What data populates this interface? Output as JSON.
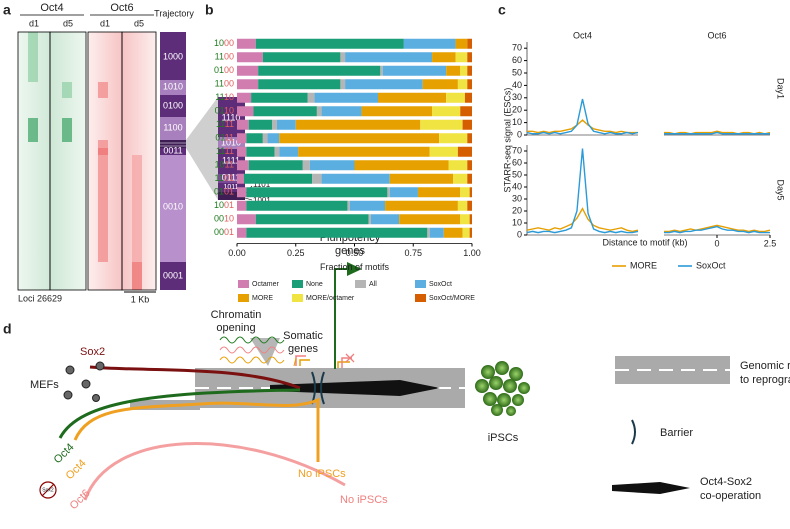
{
  "panel_labels": [
    "a",
    "b",
    "c",
    "d"
  ],
  "panel_a": {
    "groups": [
      "Oct4",
      "Oct6"
    ],
    "days": [
      "d1",
      "d5",
      "d1",
      "d5"
    ],
    "trajectory_title": "Trajectory",
    "trajectories": [
      "1000",
      "1010",
      "0100",
      "1100",
      "0011",
      "0010",
      "0001"
    ],
    "zoom": [
      "1110",
      "1010",
      "1111",
      "0111",
      "1011"
    ],
    "zoom_callouts": [
      "1101",
      "0101",
      "1001"
    ],
    "loci": "Loci 26629",
    "scale": "1 Kb"
  },
  "chart_data": [
    {
      "type": "bar",
      "orientation": "horizontal",
      "stacked": true,
      "categories": [
        "1000",
        "1100",
        "0100",
        "1100",
        "1110",
        "0110",
        "1111",
        "0111",
        "1111",
        "1011",
        "1101",
        "0101",
        "1001",
        "0010",
        "0001"
      ],
      "xlabel": "Fraction of motifs",
      "xlim": [
        0,
        1
      ],
      "xticks": [
        {
          "value": 0,
          "label": "0.00"
        },
        {
          "value": 0.25,
          "label": "0.25"
        },
        {
          "value": 0.5,
          "label": "0.50"
        },
        {
          "value": 0.75,
          "label": "0.75"
        },
        {
          "value": 1,
          "label": "1.00"
        }
      ],
      "series": [
        {
          "name": "Octamer",
          "color": "#d17db0",
          "values": [
            0.08,
            0.11,
            0.09,
            0.09,
            0.06,
            0.07,
            0.05,
            0.04,
            0.04,
            0.05,
            0.03,
            0.04,
            0.04,
            0.08,
            0.04
          ]
        },
        {
          "name": "None",
          "color": "#1a9e77",
          "values": [
            0.63,
            0.33,
            0.52,
            0.35,
            0.24,
            0.27,
            0.1,
            0.07,
            0.12,
            0.23,
            0.29,
            0.6,
            0.43,
            0.48,
            0.77
          ]
        },
        {
          "name": "All",
          "color": "#b5b5b5",
          "values": [
            0,
            0.02,
            0.01,
            0.02,
            0.03,
            0.02,
            0.02,
            0.02,
            0.02,
            0.03,
            0.04,
            0.01,
            0.01,
            0.01,
            0.01
          ]
        },
        {
          "name": "SoxOct",
          "color": "#5aaee0",
          "values": [
            0.22,
            0.37,
            0.27,
            0.33,
            0.27,
            0.17,
            0.08,
            0.05,
            0.08,
            0.19,
            0.29,
            0.12,
            0.15,
            0.12,
            0.06
          ]
        },
        {
          "name": "MORE",
          "color": "#e6a100",
          "values": [
            0.05,
            0.1,
            0.06,
            0.15,
            0.29,
            0.3,
            0.53,
            0.68,
            0.56,
            0.4,
            0.27,
            0.18,
            0.31,
            0.26,
            0.08
          ]
        },
        {
          "name": "MORE/octamer",
          "color": "#f0e442",
          "values": [
            0,
            0.05,
            0.03,
            0.04,
            0.08,
            0.12,
            0.18,
            0.12,
            0.12,
            0.08,
            0.06,
            0.04,
            0.04,
            0.04,
            0.03
          ]
        },
        {
          "name": "SoxOct/MORE",
          "color": "#d55e00",
          "values": [
            0.02,
            0.02,
            0.02,
            0.02,
            0.03,
            0.05,
            0.04,
            0.02,
            0.06,
            0.02,
            0.02,
            0.01,
            0.02,
            0.01,
            0.01
          ]
        }
      ]
    },
    {
      "type": "line",
      "ylabel": "STARR-seq signal (ESCs)",
      "xlabel": "Distance to motif (kb)",
      "columns": [
        "Oct4",
        "Oct6"
      ],
      "rows": [
        "Day1",
        "Day5"
      ],
      "x": [
        -2.5,
        -2.25,
        -2,
        -1.75,
        -1.5,
        -1.25,
        -1,
        -0.75,
        -0.5,
        -0.25,
        0,
        0.25,
        0.5,
        0.75,
        1,
        1.25,
        1.5,
        1.75,
        2,
        2.25,
        2.5
      ],
      "xlim": [
        -2.5,
        2.5
      ],
      "xticks": [
        0,
        2.5
      ],
      "ylim": [
        0,
        75
      ],
      "yticks": [
        0,
        10,
        20,
        30,
        40,
        50,
        60,
        70
      ],
      "series": [
        {
          "name": "MORE",
          "color": "#e69f00",
          "values": [
            [
              3,
              3,
              2,
              3,
              2,
              3,
              3,
              4,
              5,
              8,
              12,
              8,
              5,
              4,
              3,
              3,
              2,
              3,
              2,
              2,
              2
            ],
            [
              2,
              2,
              1,
              2,
              2,
              1,
              2,
              2,
              2,
              2,
              3,
              2,
              2,
              2,
              1,
              2,
              2,
              1,
              2,
              1,
              2
            ],
            [
              4,
              5,
              6,
              5,
              4,
              6,
              5,
              7,
              9,
              14,
              22,
              13,
              8,
              6,
              5,
              4,
              5,
              6,
              4,
              3,
              4
            ],
            [
              3,
              3,
              4,
              3,
              4,
              5,
              4,
              5,
              6,
              7,
              8,
              7,
              6,
              5,
              4,
              4,
              3,
              4,
              3,
              3,
              4
            ]
          ]
        },
        {
          "name": "SoxOct",
          "color": "#2a9ad8",
          "values": [
            [
              2,
              1,
              1,
              2,
              1,
              2,
              1,
              2,
              3,
              8,
              29,
              9,
              3,
              2,
              1,
              2,
              1,
              1,
              2,
              1,
              2
            ],
            [
              1,
              1,
              1,
              1,
              1,
              1,
              1,
              1,
              1,
              1,
              2,
              1,
              1,
              1,
              1,
              1,
              1,
              1,
              1,
              1,
              1
            ],
            [
              2,
              3,
              2,
              3,
              3,
              2,
              3,
              4,
              6,
              20,
              72,
              18,
              5,
              3,
              2,
              3,
              2,
              3,
              2,
              2,
              3
            ],
            [
              2,
              2,
              3,
              2,
              3,
              3,
              4,
              4,
              5,
              6,
              7,
              5,
              4,
              4,
              3,
              3,
              2,
              3,
              2,
              2,
              2
            ]
          ]
        }
      ]
    }
  ],
  "panel_d": {
    "chromatin": [
      "Chromatin",
      "opening"
    ],
    "somatic": [
      "Somatic",
      "genes"
    ],
    "pluripotency": [
      "Pluripotency",
      "genes"
    ],
    "sox2": "Sox2",
    "mefs": "MEFs",
    "oct4_green": "Oct4",
    "oct4_orange": "Oct4",
    "oct6": "Oct6",
    "sox2_crossed": "Sox2",
    "no_ipscs_orange": "No iPSCs",
    "no_ipscs_pink": "No iPSCs",
    "ipscs": "iPSCs",
    "legend": {
      "roadmap": [
        "Genomic roadmap",
        "to reprogramming"
      ],
      "barrier": "Barrier",
      "cooperation": [
        "Oct4-Sox2",
        "co-operation"
      ]
    }
  }
}
